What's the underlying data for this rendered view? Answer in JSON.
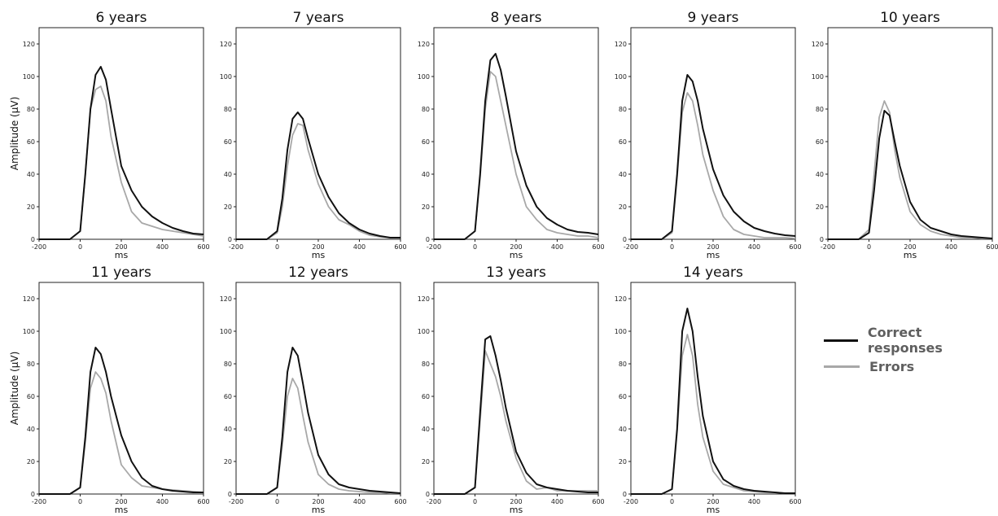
{
  "chart_data": {
    "type": "line",
    "ylabel": "Amplitude (μV)",
    "xlabel": "ms",
    "xlim": [
      -200,
      600
    ],
    "ylim": [
      0,
      130
    ],
    "xticks": [
      -200,
      0,
      200,
      400,
      600
    ],
    "yticks": [
      0,
      20,
      40,
      60,
      80,
      100,
      120
    ],
    "legend": {
      "position": "right",
      "entries": [
        {
          "label": "Correct responses",
          "color": "#111111"
        },
        {
          "label": "Errors",
          "color": "#a8a8a8"
        }
      ]
    },
    "x": [
      -200,
      -100,
      -50,
      0,
      25,
      50,
      75,
      100,
      125,
      150,
      200,
      250,
      300,
      350,
      400,
      450,
      500,
      550,
      600
    ],
    "panels": [
      {
        "title": "6 years",
        "series": [
          {
            "name": "Correct responses",
            "values": [
              0,
              0,
              0,
              5,
              40,
              80,
              101,
              106,
              98,
              80,
              45,
              30,
              20,
              14,
              10,
              7,
              5,
              3.5,
              3
            ]
          },
          {
            "name": "Errors",
            "values": [
              0,
              0,
              0,
              5,
              40,
              80,
              92,
              94,
              85,
              63,
              35,
              17,
              10,
              8,
              6,
              5,
              4,
              3,
              2
            ]
          }
        ]
      },
      {
        "title": "7 years",
        "series": [
          {
            "name": "Correct responses",
            "values": [
              0,
              0,
              0,
              5,
              25,
              55,
              74,
              78,
              74,
              62,
              40,
              26,
              16,
              10,
              6,
              3.5,
              2,
              1,
              1
            ]
          },
          {
            "name": "Errors",
            "values": [
              0,
              0,
              0,
              4,
              20,
              45,
              64,
              71,
              70,
              55,
              34,
              20,
              12,
              9,
              5,
              2.5,
              1.5,
              1,
              1
            ]
          }
        ]
      },
      {
        "title": "8 years",
        "series": [
          {
            "name": "Correct responses",
            "values": [
              0,
              0,
              0,
              5,
              40,
              85,
              110,
              114,
              104,
              88,
              54,
              33,
              20,
              13,
              9,
              6,
              4.5,
              4,
              3
            ]
          },
          {
            "name": "Errors",
            "values": [
              0,
              0,
              0,
              5,
              38,
              80,
              103,
              100,
              85,
              70,
              40,
              20,
              12,
              6,
              4,
              3,
              2,
              2,
              1
            ]
          }
        ]
      },
      {
        "title": "9 years",
        "series": [
          {
            "name": "Correct responses",
            "values": [
              0,
              0,
              0,
              5,
              40,
              85,
              101,
              97,
              85,
              68,
              43,
              27,
              17,
              11,
              7,
              5,
              3.5,
              2.5,
              2
            ]
          },
          {
            "name": "Errors",
            "values": [
              0,
              0,
              0,
              4,
              38,
              78,
              90,
              85,
              70,
              52,
              30,
              14,
              6,
              3,
              2,
              1,
              1,
              1,
              0.5
            ]
          }
        ]
      },
      {
        "title": "10 years",
        "series": [
          {
            "name": "Correct responses",
            "values": [
              0,
              0,
              0,
              4,
              30,
              62,
              79,
              76,
              60,
              45,
              23,
              12,
              7,
              5,
              3,
              2,
              1.5,
              1,
              0.5
            ]
          },
          {
            "name": "Errors",
            "values": [
              0,
              0,
              0,
              6,
              40,
              75,
              85,
              78,
              55,
              38,
              17,
              9,
              5,
              3,
              2,
              1,
              1,
              0.5,
              0.5
            ]
          }
        ]
      },
      {
        "title": "11 years",
        "series": [
          {
            "name": "Correct responses",
            "values": [
              0,
              0,
              0,
              4,
              35,
              75,
              90,
              86,
              75,
              60,
              36,
              20,
              10,
              5,
              3,
              2,
              1.5,
              1,
              1
            ]
          },
          {
            "name": "Errors",
            "values": [
              0,
              0,
              0,
              4,
              32,
              65,
              75,
              71,
              62,
              45,
              18,
              10,
              5,
              4,
              3,
              2.5,
              2,
              1.5,
              1
            ]
          }
        ]
      },
      {
        "title": "12 years",
        "series": [
          {
            "name": "Correct responses",
            "values": [
              0,
              0,
              0,
              4,
              35,
              75,
              90,
              85,
              68,
              50,
              24,
              12,
              6,
              4,
              3,
              2,
              1.5,
              1,
              0.5
            ]
          },
          {
            "name": "Errors",
            "values": [
              0,
              0,
              0,
              4,
              30,
              60,
              71,
              65,
              48,
              32,
              12,
              6,
              3,
              2,
              1.5,
              1,
              1,
              0.5,
              0.5
            ]
          }
        ]
      },
      {
        "title": "13 years",
        "series": [
          {
            "name": "Correct responses",
            "values": [
              0,
              0,
              0,
              4,
              50,
              95,
              97,
              85,
              70,
              53,
              26,
              13,
              6,
              4,
              3,
              2,
              1.5,
              1,
              1
            ]
          },
          {
            "name": "Errors",
            "values": [
              0,
              0,
              0,
              4,
              45,
              88,
              80,
              72,
              60,
              45,
              22,
              8,
              3,
              4,
              2,
              2,
              2,
              2,
              2
            ]
          }
        ]
      },
      {
        "title": "14 years",
        "series": [
          {
            "name": "Correct responses",
            "values": [
              0,
              0,
              0,
              3,
              40,
              100,
              114,
              100,
              72,
              48,
              20,
              9,
              5,
              3,
              2,
              1.5,
              1,
              0.5,
              0.5
            ]
          },
          {
            "name": "Errors",
            "values": [
              0,
              0,
              0,
              3,
              38,
              85,
              98,
              85,
              55,
              35,
              14,
              6,
              4,
              2,
              1.5,
              1,
              1,
              0.5,
              0.5
            ]
          }
        ]
      }
    ]
  }
}
